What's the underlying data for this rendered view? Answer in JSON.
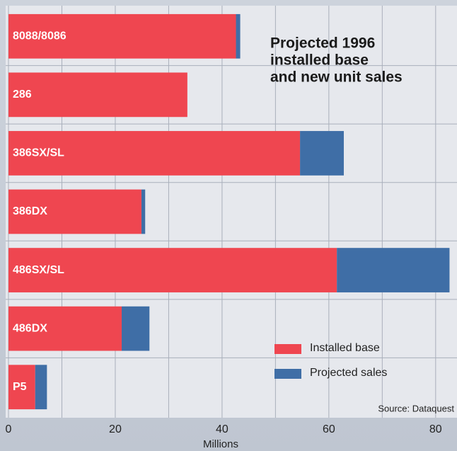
{
  "chart_data": {
    "type": "stacked_barh",
    "title": [
      "Projected 1996",
      "installed base",
      "and new unit sales"
    ],
    "categories": [
      "8088/8086",
      "286",
      "386SX/SL",
      "386DX",
      "486SX/SL",
      "486DX",
      "P5"
    ],
    "series": [
      {
        "name": "Installed base",
        "color": "#ef4650",
        "values": [
          42.6,
          33.5,
          54.6,
          24.9,
          61.5,
          21.2,
          5.0
        ]
      },
      {
        "name": "Projected sales",
        "color": "#3f6ea6",
        "values": [
          0.8,
          0,
          8.2,
          0.7,
          21.1,
          5.2,
          2.2
        ]
      }
    ],
    "xlim": [
      0,
      84
    ],
    "xticks": [
      0,
      20,
      40,
      60,
      80
    ],
    "xgrid": [
      0,
      10,
      20,
      30,
      40,
      50,
      60,
      70,
      80
    ],
    "xlabel": "Millions",
    "source": "Source: Dataquest",
    "grid": true
  }
}
